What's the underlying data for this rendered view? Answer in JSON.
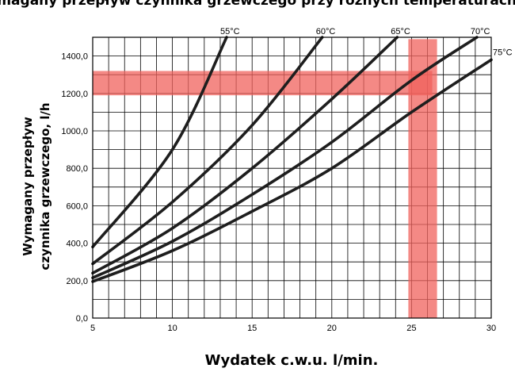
{
  "chart_data": {
    "type": "line",
    "title": "Wymagany przepływ czynnika grzewczego przy różnych temperaturach wody grzewczej",
    "xlabel": "Wydatek c.w.u. l/min.",
    "ylabel_lines": [
      "Wymagany przepływ",
      "czynnika grzewczego, l/h"
    ],
    "xlim": [
      5,
      30
    ],
    "ylim": [
      0,
      1500
    ],
    "xticks": [
      5,
      10,
      15,
      20,
      25,
      30
    ],
    "xtick_labels": [
      "5",
      "10",
      "15",
      "20",
      "25",
      "30"
    ],
    "yticks": [
      0,
      200,
      400,
      600,
      800,
      1000,
      1200,
      1400
    ],
    "ytick_labels": [
      "0,0",
      "200,0",
      "400,0",
      "600,0",
      "800,0",
      "1000,0",
      "1200,0",
      "1400,0"
    ],
    "grid": true,
    "series": [
      {
        "name": "55°C",
        "x": [
          5,
          10,
          13.4
        ],
        "y": [
          380,
          900,
          1500
        ]
      },
      {
        "name": "60°C",
        "x": [
          5,
          10,
          15,
          19.4
        ],
        "y": [
          290,
          620,
          1030,
          1500
        ]
      },
      {
        "name": "65°C",
        "x": [
          5,
          10,
          15,
          20,
          24.1
        ],
        "y": [
          240,
          480,
          800,
          1170,
          1500
        ]
      },
      {
        "name": "70°C",
        "x": [
          5,
          10,
          15,
          20,
          25,
          29.1
        ],
        "y": [
          215,
          410,
          660,
          940,
          1270,
          1500
        ]
      },
      {
        "name": "75°C",
        "x": [
          5,
          10,
          15,
          20,
          25,
          30
        ],
        "y": [
          195,
          360,
          570,
          800,
          1100,
          1380
        ]
      }
    ],
    "highlight_bands": {
      "horizontal": {
        "y_range": [
          1190,
          1320
        ],
        "x_range": [
          5,
          26.3
        ],
        "color": "#f0625c"
      },
      "vertical": {
        "x_range": [
          24.8,
          26.6
        ],
        "y_range": [
          0,
          1490
        ],
        "color": "#f0625c"
      }
    },
    "colors": {
      "line": "#1e1e1e",
      "grid": "#000000",
      "band": "#f0625c"
    }
  }
}
